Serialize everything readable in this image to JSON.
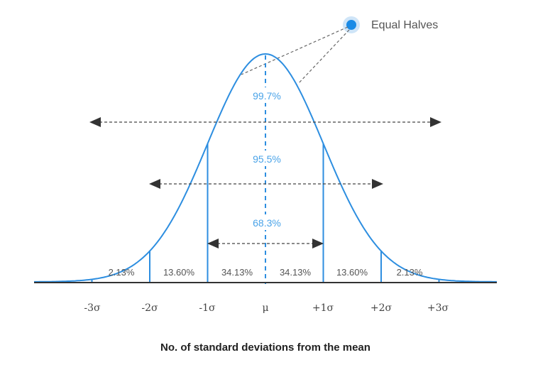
{
  "legend": {
    "label": "Equal Halves"
  },
  "ranges": {
    "three_sigma": "99.7%",
    "two_sigma": "95.5%",
    "one_sigma": "68.3%"
  },
  "segments": [
    "2.13%",
    "13.60%",
    "34.13%",
    "34.13%",
    "13.60%",
    "2.13%"
  ],
  "ticks": [
    "-3σ",
    "-2σ",
    "-1σ",
    "μ",
    "+1σ",
    "+2σ",
    "+3σ"
  ],
  "xlabel": "No. of standard deviations from the mean",
  "colors": {
    "curve": "#2d8ee0",
    "accent_text": "#4aa3e8",
    "arrow": "#333333",
    "axis": "#333333"
  }
}
